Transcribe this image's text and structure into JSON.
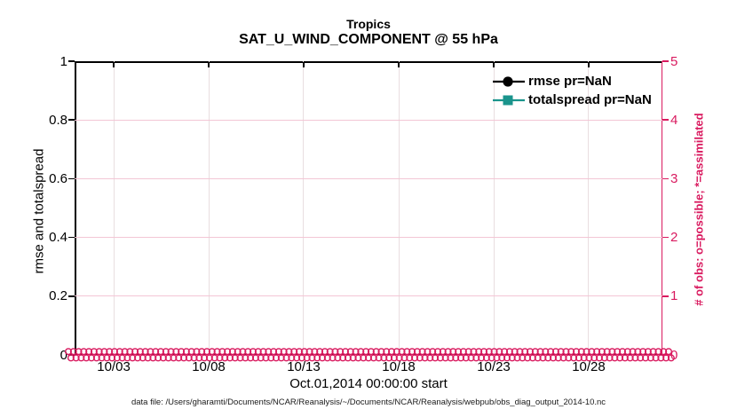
{
  "title": {
    "line1": "Tropics",
    "line2": "SAT_U_WIND_COMPONENT @ 55 hPa"
  },
  "legend": {
    "items": [
      {
        "label": "rmse pr=NaN",
        "marker": "circle",
        "color": "#000000"
      },
      {
        "label": "totalspread pr=NaN",
        "marker": "square",
        "color": "#1a948c"
      }
    ]
  },
  "footer": {
    "data_file_note": "data file: /Users/gharamti/Documents/NCAR/Reanalysis/~/Documents/NCAR/Reanalysis/webpub/obs_diag_output_2014-10.nc"
  },
  "chart_data": {
    "type": "line",
    "title": "Tropics",
    "subtitle": "SAT_U_WIND_COMPONENT @ 55 hPa",
    "xlabel": "Oct.01,2014 00:00:00 start",
    "ylabel_left": "rmse and totalspread",
    "ylabel_right": "# of obs: o=possible; *=assimilated",
    "grid": true,
    "legend_position": "top-right-inside-no-box",
    "x_axis": {
      "start": "Oct 01, 2014 00:00:00",
      "tick_labels": [
        "10/03",
        "10/08",
        "10/13",
        "10/18",
        "10/23",
        "10/28"
      ],
      "tick_pos_pct": [
        6.65,
        22.81,
        38.97,
        55.14,
        71.3,
        87.46
      ]
    },
    "y_axis_left": {
      "range": [
        0,
        1
      ],
      "tick_labels": [
        "0",
        "0.2",
        "0.4",
        "0.6",
        "0.8",
        "1"
      ],
      "color": "#000000"
    },
    "y_axis_right": {
      "range": [
        0,
        5
      ],
      "tick_labels": [
        "0",
        "1",
        "2",
        "3",
        "4",
        "5"
      ],
      "color": "#d91a5f"
    },
    "series": [
      {
        "name": "rmse pr=NaN",
        "marker": "circle",
        "color": "#000000",
        "values": [],
        "note": "all NaN - nothing plotted"
      },
      {
        "name": "totalspread pr=NaN",
        "marker": "square",
        "color": "#1a948c",
        "values": [],
        "note": "all NaN - nothing plotted"
      },
      {
        "name": "# of obs (o=possible, *=assimilated)",
        "marker": "o-and-asterisk",
        "color": "#d91a5f",
        "constant_value": 0,
        "rows": 2,
        "markers_per_row": 118
      }
    ]
  },
  "colors": {
    "axis_black": "#000000",
    "obs_pink": "#d91a5f",
    "grid_h": "#f3c6d5",
    "grid_v": "#e9dee0",
    "background": "#ffffff"
  }
}
